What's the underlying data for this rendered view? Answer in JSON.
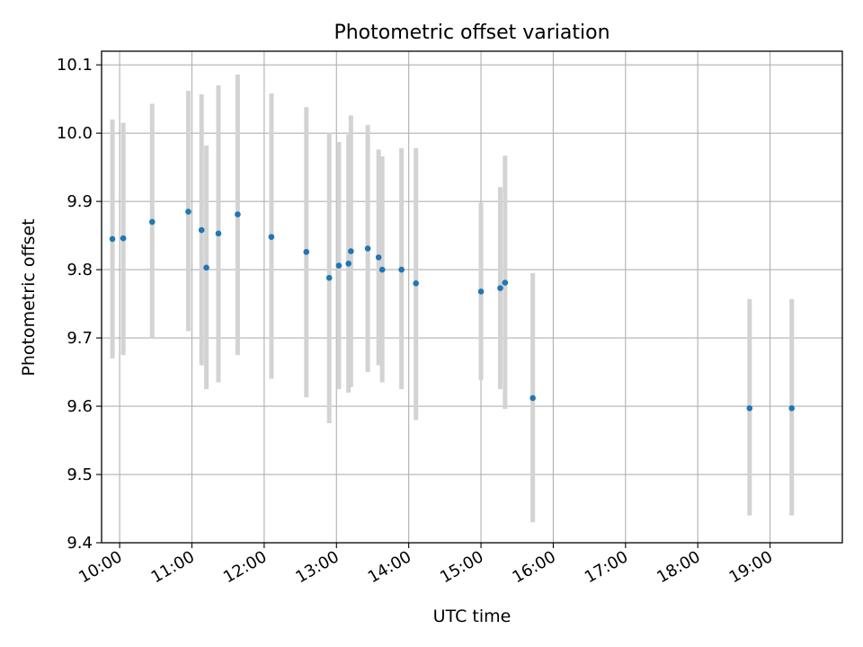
{
  "chart_data": {
    "type": "scatter",
    "title": "Photometric offset variation",
    "xlabel": "UTC time",
    "ylabel": "Photometric offset",
    "x_unit": "hours UTC",
    "xlim": [
      "09:45",
      "20:00"
    ],
    "ylim": [
      9.4,
      10.12
    ],
    "x_ticks": [
      "10:00",
      "11:00",
      "12:00",
      "13:00",
      "14:00",
      "15:00",
      "16:00",
      "17:00",
      "18:00",
      "19:00"
    ],
    "y_ticks": [
      "9.4",
      "9.5",
      "9.6",
      "9.7",
      "9.8",
      "9.9",
      "10.0",
      "10.1"
    ],
    "grid": true,
    "marker_color": "#1f77b4",
    "errorbar_color": "#d3d3d3",
    "series": [
      {
        "points": [
          {
            "x": "09:54",
            "y": 9.845,
            "low": 9.67,
            "high": 10.02
          },
          {
            "x": "10:03",
            "y": 9.846,
            "low": 9.675,
            "high": 10.015
          },
          {
            "x": "10:27",
            "y": 9.87,
            "low": 9.7,
            "high": 10.043
          },
          {
            "x": "10:57",
            "y": 9.885,
            "low": 9.71,
            "high": 10.062
          },
          {
            "x": "11:08",
            "y": 9.858,
            "low": 9.66,
            "high": 10.057
          },
          {
            "x": "11:12",
            "y": 9.803,
            "low": 9.625,
            "high": 9.982
          },
          {
            "x": "11:22",
            "y": 9.853,
            "low": 9.635,
            "high": 10.07
          },
          {
            "x": "11:38",
            "y": 9.881,
            "low": 9.675,
            "high": 10.086
          },
          {
            "x": "12:06",
            "y": 9.848,
            "low": 9.64,
            "high": 10.058
          },
          {
            "x": "12:35",
            "y": 9.826,
            "low": 9.613,
            "high": 10.038
          },
          {
            "x": "12:54",
            "y": 9.788,
            "low": 9.575,
            "high": 10.0
          },
          {
            "x": "13:02",
            "y": 9.806,
            "low": 9.625,
            "high": 9.987
          },
          {
            "x": "13:10",
            "y": 9.809,
            "low": 9.62,
            "high": 9.998
          },
          {
            "x": "13:12",
            "y": 9.827,
            "low": 9.628,
            "high": 10.026
          },
          {
            "x": "13:26",
            "y": 9.831,
            "low": 9.65,
            "high": 10.012
          },
          {
            "x": "13:35",
            "y": 9.818,
            "low": 9.66,
            "high": 9.976
          },
          {
            "x": "13:38",
            "y": 9.8,
            "low": 9.635,
            "high": 9.966
          },
          {
            "x": "13:54",
            "y": 9.8,
            "low": 9.625,
            "high": 9.978
          },
          {
            "x": "14:06",
            "y": 9.78,
            "low": 9.58,
            "high": 9.978
          },
          {
            "x": "15:00",
            "y": 9.768,
            "low": 9.638,
            "high": 9.898
          },
          {
            "x": "15:16",
            "y": 9.773,
            "low": 9.625,
            "high": 9.921
          },
          {
            "x": "15:20",
            "y": 9.781,
            "low": 9.596,
            "high": 9.967
          },
          {
            "x": "15:43",
            "y": 9.612,
            "low": 9.43,
            "high": 9.795
          },
          {
            "x": "18:43",
            "y": 9.597,
            "low": 9.44,
            "high": 9.757
          },
          {
            "x": "19:18",
            "y": 9.597,
            "low": 9.44,
            "high": 9.757
          }
        ]
      }
    ]
  }
}
